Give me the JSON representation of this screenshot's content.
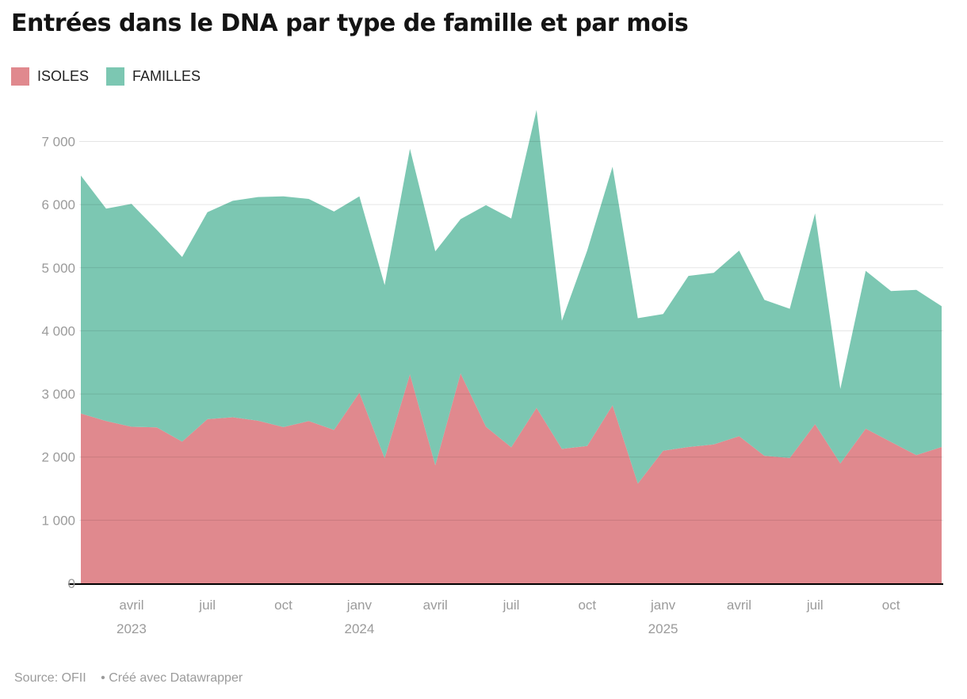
{
  "title": "Entrées dans le DNA par type de famille et par mois",
  "legend": [
    {
      "label": "ISOLES",
      "color": "#E0898E"
    },
    {
      "label": "FAMILLES",
      "color": "#7CC7B2"
    }
  ],
  "source": {
    "prefix": "Source: OFII",
    "attribution": "• Créé avec Datawrapper"
  },
  "colors": {
    "isoles": "#E0898E",
    "familles": "#7CC7B2",
    "axis_text": "#9b9b9b",
    "gridline": "#e5e5e5",
    "baseline": "#000000",
    "title_text": "#141414",
    "legend_text": "#222222"
  },
  "chart_data": {
    "type": "area",
    "stacked": true,
    "title": "Entrées dans le DNA par type de famille et par mois",
    "xlabel": "",
    "ylabel": "",
    "ylim": [
      0,
      7000
    ],
    "grid": "horizontal",
    "legend_position": "top-left",
    "x": [
      "févr 2023",
      "mars 2023",
      "avril 2023",
      "mai 2023",
      "juin 2023",
      "juil 2023",
      "août 2023",
      "sept 2023",
      "oct 2023",
      "nov 2023",
      "déc 2023",
      "janv 2024",
      "févr 2024",
      "mars 2024",
      "avril 2024",
      "mai 2024",
      "juin 2024",
      "juil 2024",
      "août 2024",
      "sept 2024",
      "oct 2024",
      "nov 2024",
      "déc 2024",
      "janv 2025",
      "févr 2025",
      "mars 2025",
      "avril 2025",
      "mai 2025",
      "juin 2025",
      "juil 2025",
      "août 2025",
      "sept 2025",
      "oct 2025",
      "nov 2025",
      "déc 2025"
    ],
    "series": [
      {
        "name": "ISOLES",
        "color": "#E0898E",
        "values": [
          2690,
          2570,
          2480,
          2470,
          2245,
          2600,
          2630,
          2575,
          2475,
          2570,
          2430,
          3020,
          1980,
          3310,
          1870,
          3325,
          2480,
          2155,
          2780,
          2130,
          2175,
          2820,
          1580,
          2100,
          2160,
          2200,
          2330,
          2020,
          1985,
          2520,
          1900,
          2450,
          2240,
          2030,
          2160
        ]
      },
      {
        "name": "FAMILLES",
        "color": "#7CC7B2",
        "values": [
          3770,
          3365,
          3530,
          3130,
          2925,
          3280,
          3430,
          3545,
          3655,
          3520,
          3460,
          3110,
          2745,
          3575,
          3390,
          2445,
          3510,
          3625,
          4720,
          2030,
          3095,
          3780,
          2620,
          2165,
          2710,
          2720,
          2940,
          2470,
          2365,
          3340,
          1180,
          2500,
          2390,
          2620,
          2230
        ]
      }
    ],
    "totals_note": "stacked top edge = ISOLES + FAMILLES",
    "y_ticks": [
      0,
      1000,
      2000,
      3000,
      4000,
      5000,
      6000,
      7000
    ],
    "y_tick_labels": [
      "0",
      "1 000",
      "2 000",
      "3 000",
      "4 000",
      "5 000",
      "6 000",
      "7 000"
    ],
    "x_ticks": [
      {
        "index": 2,
        "label": "avril",
        "year": "2023"
      },
      {
        "index": 5,
        "label": "juil"
      },
      {
        "index": 8,
        "label": "oct"
      },
      {
        "index": 11,
        "label": "janv",
        "year": "2024"
      },
      {
        "index": 14,
        "label": "avril"
      },
      {
        "index": 17,
        "label": "juil"
      },
      {
        "index": 20,
        "label": "oct"
      },
      {
        "index": 23,
        "label": "janv",
        "year": "2025"
      },
      {
        "index": 26,
        "label": "avril"
      },
      {
        "index": 29,
        "label": "juil"
      },
      {
        "index": 32,
        "label": "oct"
      }
    ]
  }
}
